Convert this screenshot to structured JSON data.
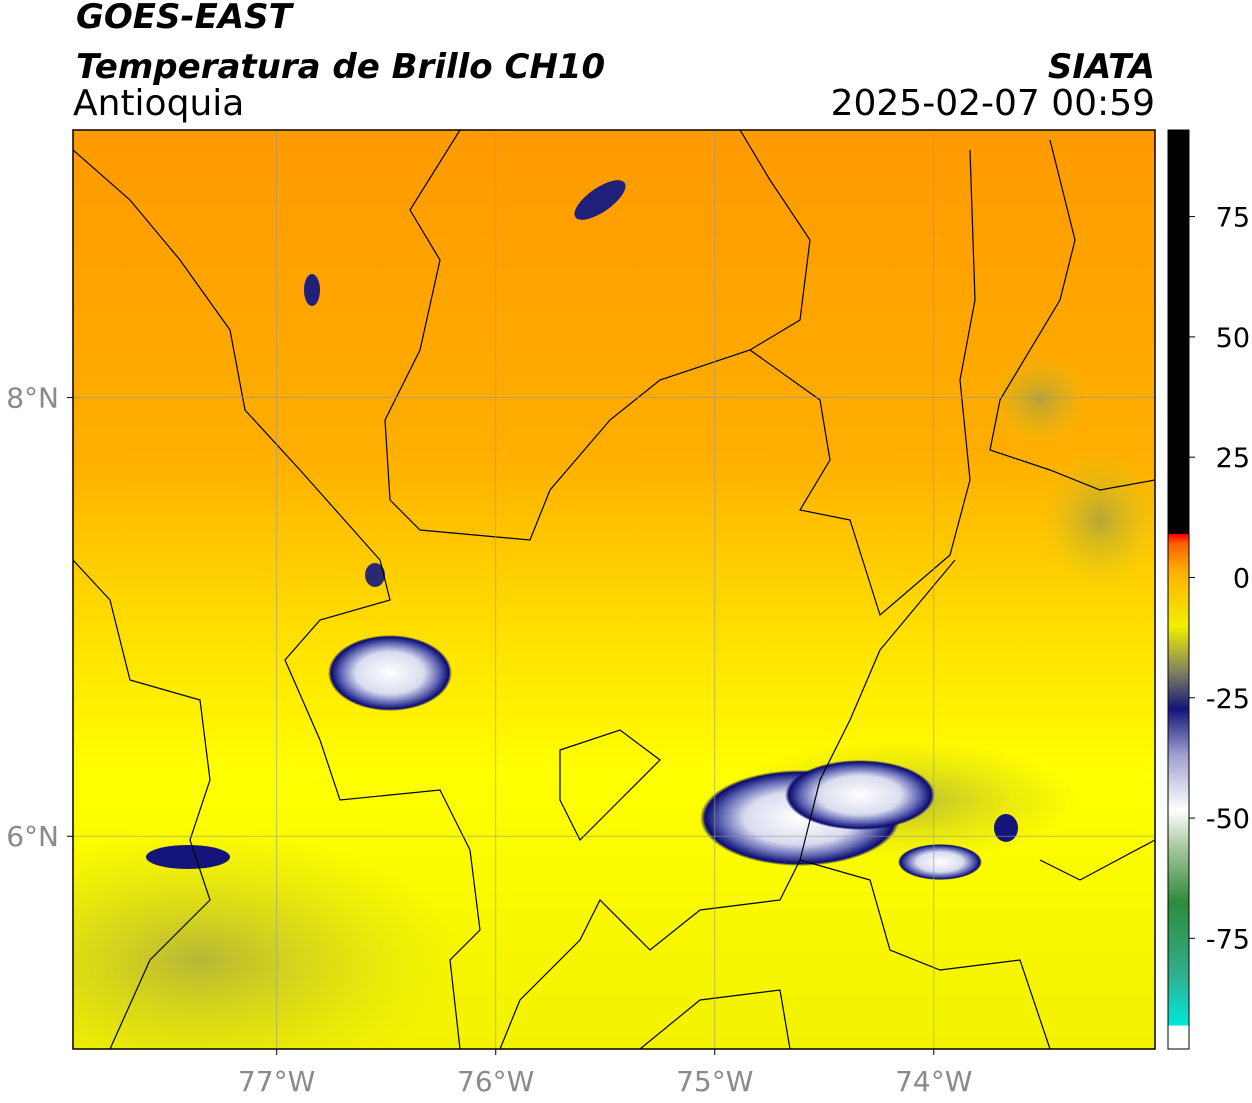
{
  "header": {
    "title": "GOES-EAST",
    "subtitle": "Temperatura de Brillo CH10",
    "region": "Antioquia",
    "source": "SIATA",
    "timestamp": "2025-02-07 00:59"
  },
  "map": {
    "lon_range": [
      -77.93,
      -72.99
    ],
    "lat_range": [
      5.03,
      9.22
    ],
    "lon_ticks": [
      {
        "value": -77,
        "label": "77°W"
      },
      {
        "value": -76,
        "label": "76°W"
      },
      {
        "value": -75,
        "label": "75°W"
      },
      {
        "value": -74,
        "label": "74°W"
      }
    ],
    "lat_ticks": [
      {
        "value": 8,
        "label": "8°N"
      },
      {
        "value": 6,
        "label": "6°N"
      }
    ]
  },
  "colorbar": {
    "range": [
      -98,
      93
    ],
    "ticks": [
      75,
      50,
      25,
      0,
      -25,
      -50,
      -75
    ]
  }
}
